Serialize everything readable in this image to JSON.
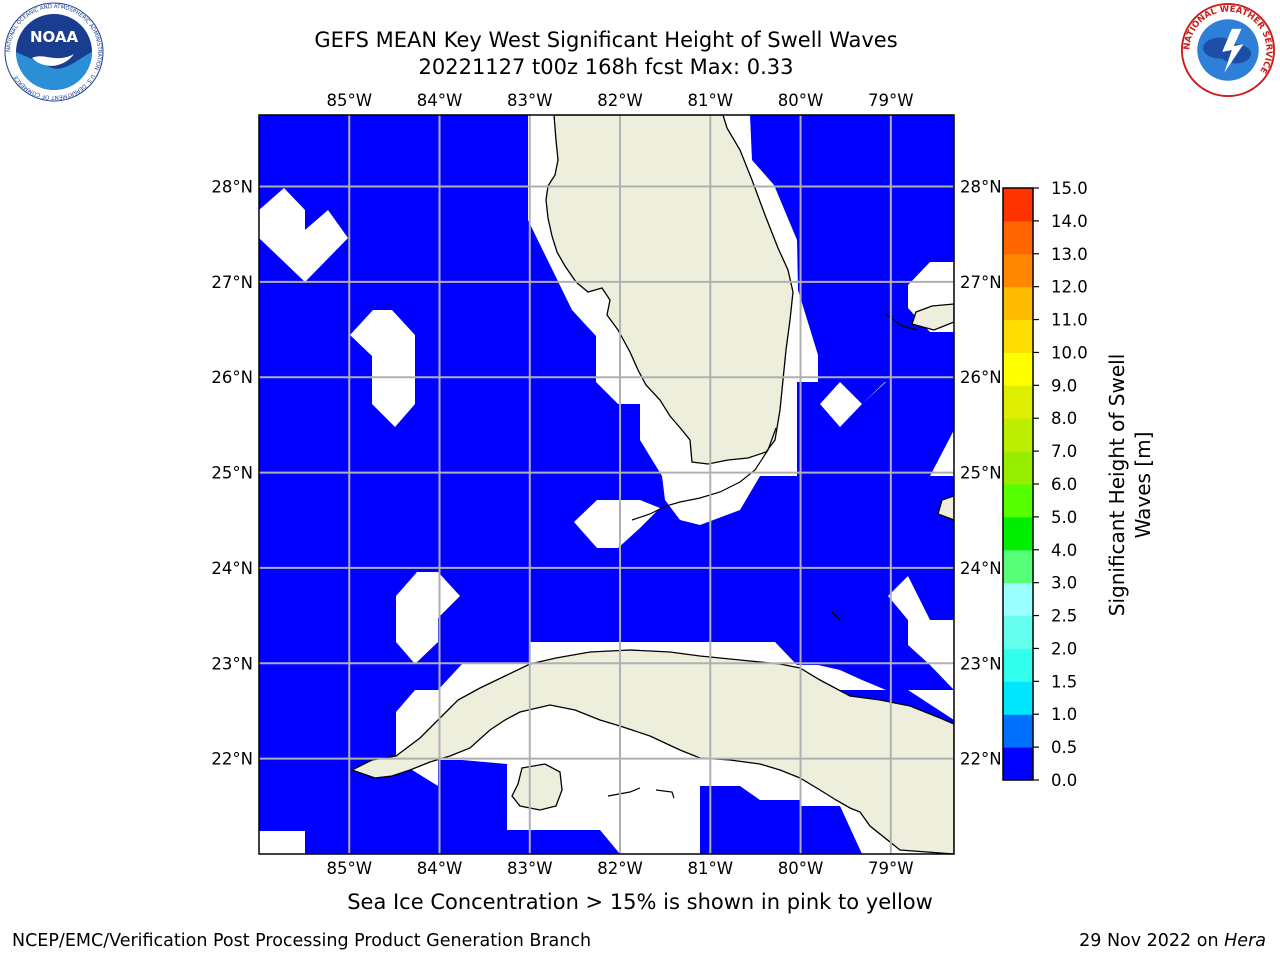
{
  "header": {
    "title_line1": "GEFS MEAN Key West Significant Height of Swell Waves",
    "title_line2": "20221127 t00z 168h fcst   Max: 0.33"
  },
  "map": {
    "lon_labels": [
      "85°W",
      "84°W",
      "83°W",
      "82°W",
      "81°W",
      "80°W",
      "79°W"
    ],
    "lat_labels": [
      "28°N",
      "27°N",
      "26°N",
      "25°N",
      "24°N",
      "23°N",
      "22°N"
    ],
    "extent": {
      "lon_min": -86.0,
      "lon_max": -78.3,
      "lat_min": 21.0,
      "lat_max": 28.75
    },
    "colors": {
      "ocean": "#0000ff",
      "land": "#eeeedd",
      "gap": "#ffffff",
      "grid": "#b0b0b0"
    }
  },
  "colorbar": {
    "label_line1": "Significant Height of Swell",
    "label_line2": "Waves [m]",
    "ticks": [
      "0.0",
      "0.5",
      "1.0",
      "1.5",
      "2.0",
      "2.5",
      "3.0",
      "4.0",
      "5.0",
      "6.0",
      "7.0",
      "8.0",
      "9.0",
      "10.0",
      "11.0",
      "12.0",
      "13.0",
      "14.0",
      "15.0"
    ],
    "colors": [
      "#0000ff",
      "#0070ff",
      "#00e6ff",
      "#33ffee",
      "#66ffee",
      "#99ffff",
      "#55ff77",
      "#00ee00",
      "#55ff00",
      "#99ee00",
      "#bbee00",
      "#ddee00",
      "#ffff00",
      "#ffdd00",
      "#ffbb00",
      "#ff8800",
      "#ff6600",
      "#ff3300",
      "#ff0000"
    ]
  },
  "footer": {
    "note": "Sea Ice Concentration > 15% is shown in pink to yellow",
    "credit": "NCEP/EMC/Verification Post Processing Product Generation Branch",
    "date": "29 Nov 2022 on",
    "host": "Hera"
  },
  "logos": {
    "noaa_text": "NOAA",
    "noaa_ring": "NATIONAL OCEANIC AND ATMOSPHERIC ADMINISTRATION · U.S. DEPARTMENT OF COMMERCE",
    "nws_ring": "NATIONAL WEATHER SERVICE"
  }
}
